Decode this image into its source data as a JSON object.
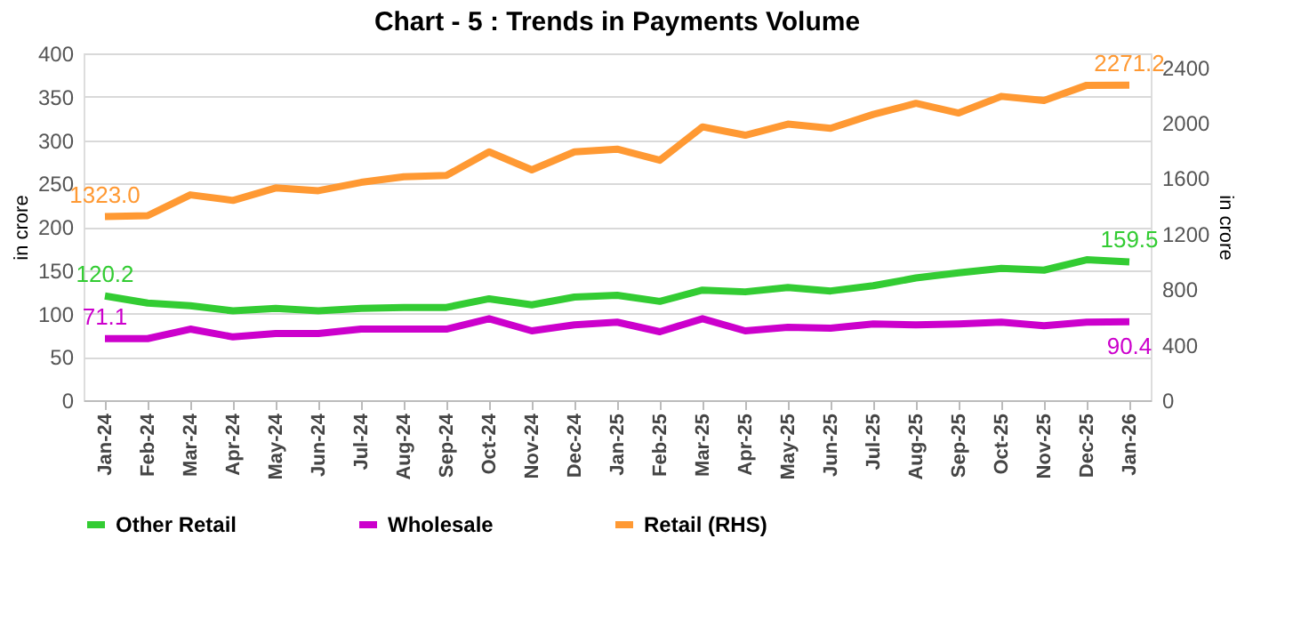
{
  "chart_data": {
    "type": "line",
    "title": "Chart - 5 : Trends in Payments Volume",
    "ylabel": "in crore",
    "y2label": "in crore",
    "categories": [
      "Jan-24",
      "Feb-24",
      "Mar-24",
      "Apr-24",
      "May-24",
      "Jun-24",
      "Jul-24",
      "Aug-24",
      "Sep-24",
      "Oct-24",
      "Nov-24",
      "Dec-24",
      "Jan-25",
      "Feb-25",
      "Mar-25",
      "Apr-25",
      "May-25",
      "Jun-25",
      "Jul-25",
      "Aug-25",
      "Sep-25",
      "Oct-25",
      "Nov-25",
      "Dec-25",
      "Jan-26"
    ],
    "series": [
      {
        "name": "Other Retail",
        "color": "#33cc33",
        "values": [
          120.2,
          112,
          109,
          103,
          106,
          103,
          106,
          107,
          107,
          117,
          110,
          119,
          121,
          114,
          127,
          125,
          130,
          126,
          132,
          141,
          147,
          152,
          150,
          162,
          159.5
        ],
        "value_labels": [
          "120.2",
          null,
          null,
          null,
          null,
          null,
          null,
          null,
          null,
          null,
          null,
          null,
          null,
          null,
          null,
          null,
          null,
          null,
          null,
          null,
          null,
          null,
          null,
          null,
          "159.5"
        ]
      },
      {
        "name": "Wholesale",
        "color": "#cc00cc",
        "values": [
          71.1,
          71,
          82,
          73,
          77,
          77,
          82,
          82,
          82,
          94,
          80,
          87,
          90,
          79,
          94,
          80,
          84,
          83,
          88,
          87,
          88,
          90,
          86,
          90,
          90.4
        ],
        "value_labels": [
          "71.1",
          null,
          null,
          null,
          null,
          null,
          null,
          null,
          null,
          null,
          null,
          null,
          null,
          null,
          null,
          null,
          null,
          null,
          null,
          null,
          null,
          null,
          null,
          null,
          "90.4"
        ]
      },
      {
        "name": "Retail  (RHS)",
        "color": "#ff9933",
        "axis": "y2",
        "values": [
          1323.0,
          1330,
          1480,
          1440,
          1530,
          1510,
          1570,
          1610,
          1620,
          1790,
          1660,
          1790,
          1810,
          1730,
          1970,
          1910,
          1990,
          1960,
          2060,
          2140,
          2070,
          2190,
          2160,
          2270,
          2271.2
        ],
        "value_labels": [
          "1323.0",
          null,
          null,
          null,
          null,
          null,
          null,
          null,
          null,
          null,
          null,
          null,
          null,
          null,
          null,
          null,
          null,
          null,
          null,
          null,
          null,
          null,
          null,
          null,
          "2271.2"
        ]
      }
    ],
    "ylim": [
      0,
      400
    ],
    "yticks": [
      0,
      50,
      100,
      150,
      200,
      250,
      300,
      350,
      400
    ],
    "y2lim": [
      0,
      2500
    ],
    "y2ticks": [
      0,
      400,
      800,
      1200,
      1600,
      2000,
      2400
    ],
    "grid": "y",
    "legend": "bottom",
    "line_style": "solid",
    "marker": "none"
  }
}
